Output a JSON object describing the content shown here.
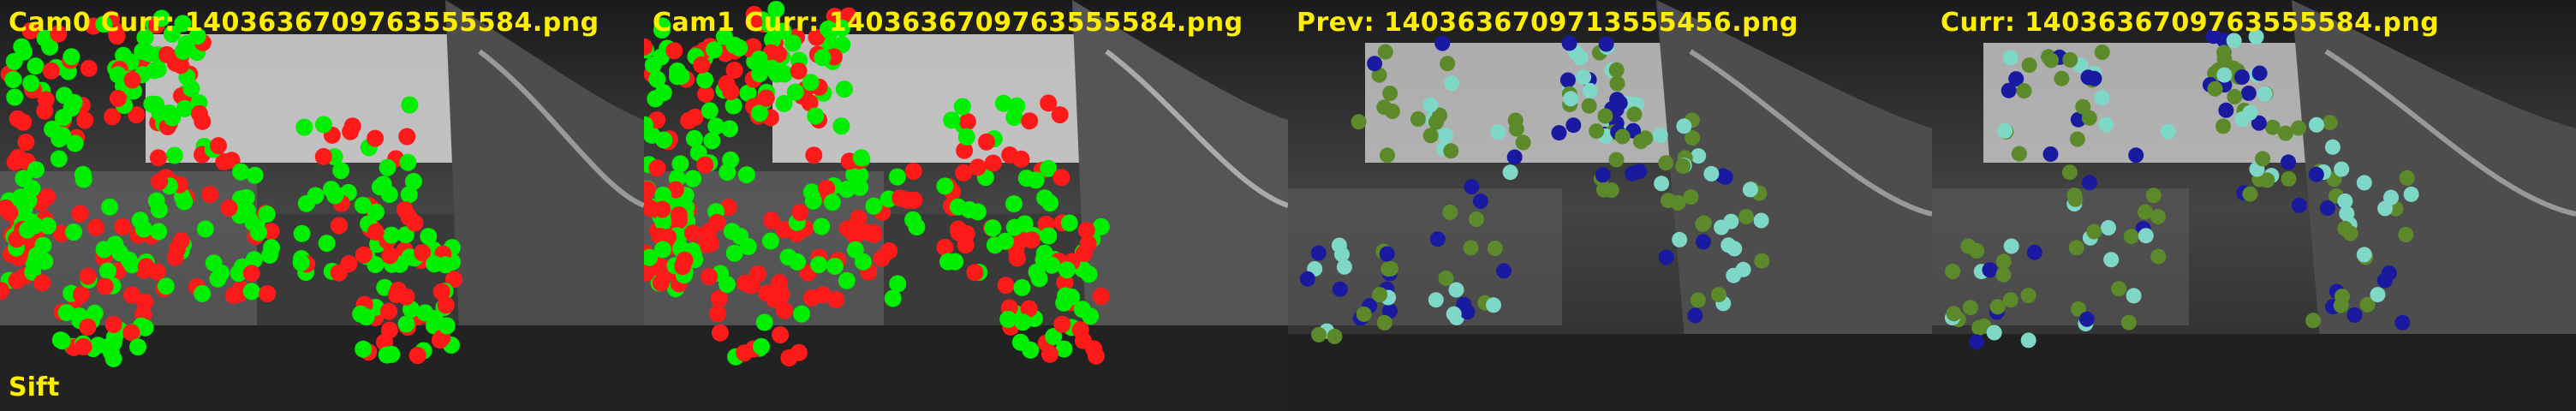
{
  "colors": {
    "caption": "#ffee00",
    "tracked": "#00ee00",
    "rejected": "#ff1a1a",
    "prev_old": "#5c8a2a",
    "prev_new": "#1a1aa0",
    "prev_mid": "#7fd7c8"
  },
  "panels": [
    {
      "caption": "Cam0 Curr: 1403636709763555584.png",
      "mode": "stereo"
    },
    {
      "caption": "Cam1 Curr: 1403636709763555584.png",
      "mode": "stereo"
    },
    {
      "caption": "Prev: 1403636709713555456.png",
      "mode": "track"
    },
    {
      "caption": "Curr: 1403636709763555584.png",
      "mode": "track"
    }
  ],
  "method_label": "Sift"
}
